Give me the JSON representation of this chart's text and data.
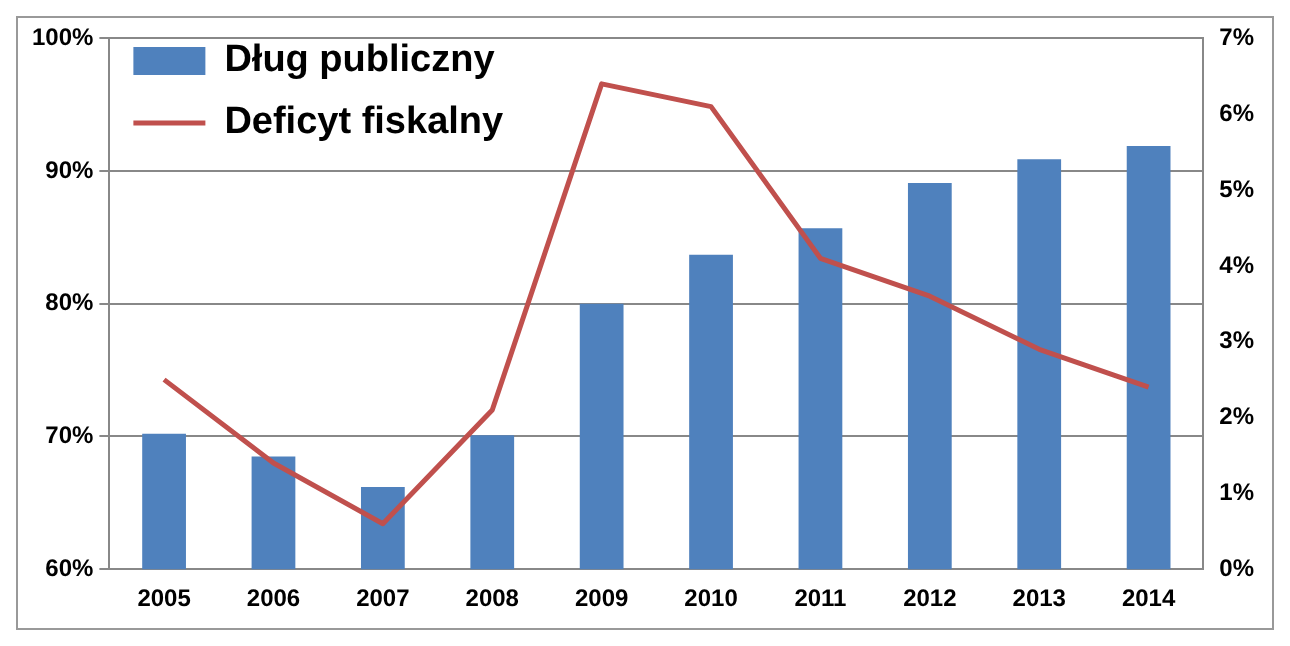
{
  "chart_data": {
    "type": "bar",
    "categories": [
      "2005",
      "2006",
      "2007",
      "2008",
      "2009",
      "2010",
      "2011",
      "2012",
      "2013",
      "2014"
    ],
    "series": [
      {
        "name": "Dług publiczny",
        "color": "#4f81bd",
        "values": [
          70.2,
          68.5,
          66.2,
          70.1,
          80.0,
          83.7,
          85.7,
          89.1,
          90.9,
          91.9
        ]
      },
      {
        "name": "Deficyt fiskalny",
        "type": "line",
        "axis": "y2",
        "color": "#c0504d",
        "values": [
          2.5,
          1.4,
          0.6,
          2.1,
          6.4,
          6.1,
          4.1,
          3.6,
          2.9,
          2.4
        ]
      }
    ],
    "ylim": [
      60,
      100
    ],
    "yticks": [
      {
        "value": 60,
        "label": "60%"
      },
      {
        "value": 70,
        "label": "70%"
      },
      {
        "value": 80,
        "label": "80%"
      },
      {
        "value": 90,
        "label": "90%"
      },
      {
        "value": 100,
        "label": "100%"
      }
    ],
    "y2lim": [
      0,
      7
    ],
    "y2ticks": [
      {
        "value": 0,
        "label": "0%"
      },
      {
        "value": 1,
        "label": "1%"
      },
      {
        "value": 2,
        "label": "2%"
      },
      {
        "value": 3,
        "label": "3%"
      },
      {
        "value": 4,
        "label": "4%"
      },
      {
        "value": 5,
        "label": "5%"
      },
      {
        "value": 6,
        "label": "6%"
      },
      {
        "value": 7,
        "label": "7%"
      }
    ],
    "grid": "y",
    "legend": "top left",
    "marker": "none",
    "line_style": "solid"
  }
}
